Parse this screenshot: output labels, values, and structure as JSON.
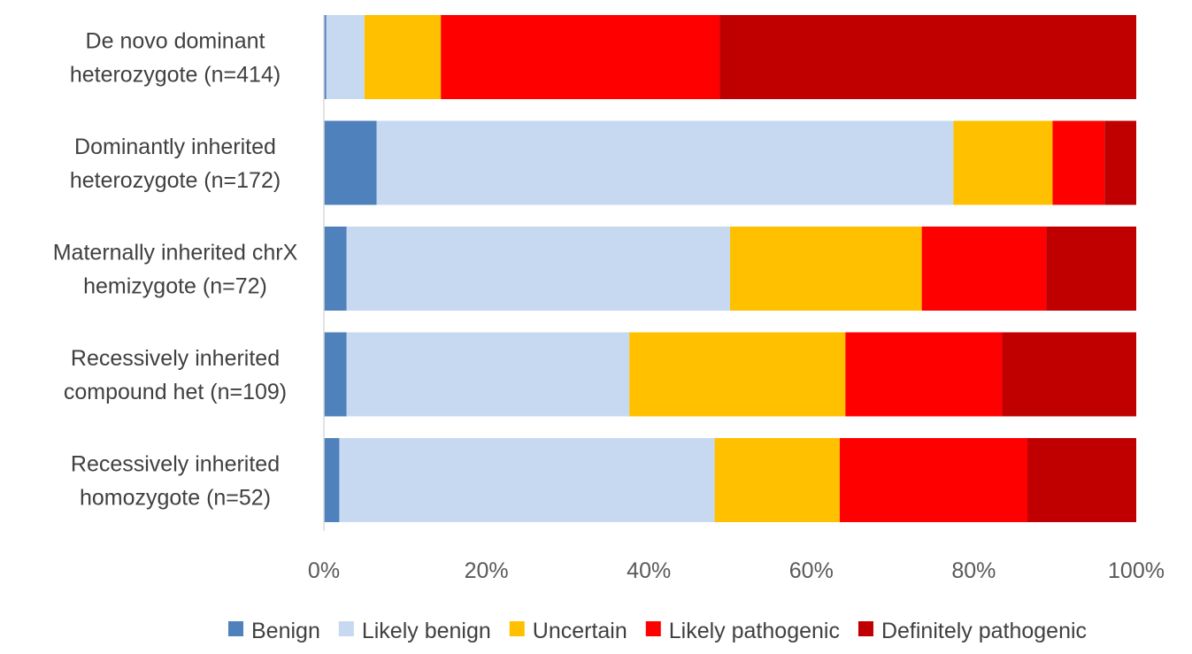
{
  "chart_data": {
    "type": "bar",
    "orientation": "horizontal",
    "stacked": "percent",
    "categories": [
      [
        "De novo dominant",
        "heterozygote (n=414)"
      ],
      [
        "Dominantly inherited",
        "heterozygote (n=172)"
      ],
      [
        "Maternally inherited chrX",
        "hemizygote (n=72)"
      ],
      [
        "Recessively inherited",
        "compound het (n=109)"
      ],
      [
        "Recessively inherited",
        "homozygote (n=52)"
      ]
    ],
    "series": [
      {
        "name": "Benign",
        "color": "#4f81bd",
        "values": [
          0.3,
          6.5,
          2.8,
          2.8,
          1.9
        ]
      },
      {
        "name": "Likely benign",
        "color": "#c6d9f1",
        "values": [
          4.7,
          71.0,
          47.2,
          34.8,
          46.2
        ]
      },
      {
        "name": "Uncertain",
        "color": "#ffc000",
        "values": [
          9.4,
          12.2,
          23.6,
          26.6,
          15.4
        ]
      },
      {
        "name": "Likely pathogenic",
        "color": "#ff0000",
        "values": [
          34.3,
          6.4,
          15.3,
          19.3,
          23.1
        ]
      },
      {
        "name": "Definitely pathogenic",
        "color": "#c00000",
        "values": [
          51.3,
          3.9,
          11.1,
          16.5,
          13.4
        ]
      }
    ],
    "xlim": [
      0,
      100
    ],
    "xticks": [
      "0%",
      "20%",
      "40%",
      "60%",
      "80%",
      "100%"
    ],
    "grid": false,
    "legend_position": "bottom"
  }
}
